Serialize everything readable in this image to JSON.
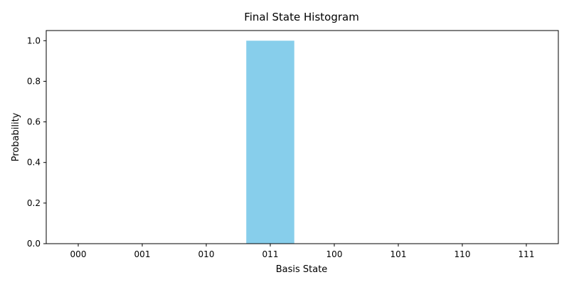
{
  "chart_data": {
    "type": "bar",
    "title": "Final State Histogram",
    "xlabel": "Basis State",
    "ylabel": "Probability",
    "categories": [
      "000",
      "001",
      "010",
      "011",
      "100",
      "101",
      "110",
      "111"
    ],
    "values": [
      0,
      0,
      0,
      1.0,
      0,
      0,
      0,
      0
    ],
    "ylim": [
      0,
      1.05
    ],
    "yticks": [
      "0.0",
      "0.2",
      "0.4",
      "0.6",
      "0.8",
      "1.0"
    ],
    "bar_color": "#87ceeb",
    "grid": false,
    "legend": "none"
  }
}
